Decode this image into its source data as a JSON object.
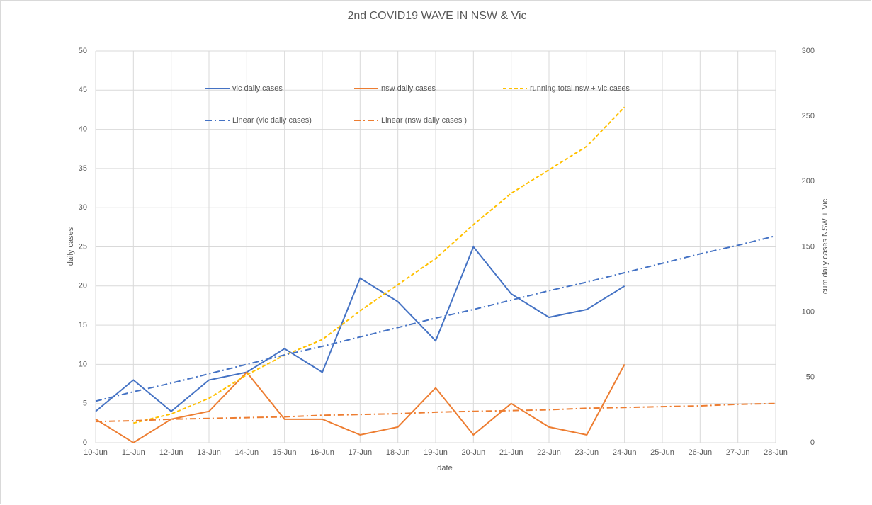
{
  "chart_data": {
    "type": "line",
    "title": "2nd COVID19 WAVE IN NSW & Vic",
    "x_label": "date",
    "y_label": "daily cases",
    "y2_label": "cum daily cases NSW + Vic",
    "categories": [
      "10-Jun",
      "11-Jun",
      "12-Jun",
      "13-Jun",
      "14-Jun",
      "15-Jun",
      "16-Jun",
      "17-Jun",
      "18-Jun",
      "19-Jun",
      "20-Jun",
      "21-Jun",
      "22-Jun",
      "23-Jun",
      "24-Jun",
      "25-Jun",
      "26-Jun",
      "27-Jun",
      "28-Jun"
    ],
    "ylim": [
      0,
      50
    ],
    "yticks": [
      0,
      5,
      10,
      15,
      20,
      25,
      30,
      35,
      40,
      45,
      50
    ],
    "y2lim": [
      0,
      300
    ],
    "y2ticks": [
      0,
      50,
      100,
      150,
      200,
      250,
      300
    ],
    "grid": true,
    "series": [
      {
        "name": "vic daily cases",
        "color": "#4472c4",
        "line_style": "solid",
        "values": [
          4,
          8,
          4,
          8,
          9,
          12,
          9,
          21,
          18,
          13,
          25,
          19,
          16,
          17,
          20,
          null,
          null,
          null,
          null
        ]
      },
      {
        "name": "nsw daily cases",
        "color": "#ed7d31",
        "line_style": "solid",
        "values": [
          3,
          0,
          3,
          4,
          9,
          3,
          3,
          1,
          2,
          7,
          1,
          5,
          2,
          1,
          10,
          null,
          null,
          null,
          null
        ]
      },
      {
        "name": "running total nsw + vic cases",
        "color": "#ffc000",
        "line_style": "dash",
        "axis": "y2",
        "values": [
          null,
          15,
          22,
          34,
          52,
          67,
          79,
          101,
          121,
          141,
          167,
          191,
          209,
          227,
          257,
          null,
          null,
          null,
          null
        ]
      },
      {
        "name": "Linear (vic daily cases)",
        "color": "#4472c4",
        "line_style": "dash-dot",
        "values": [
          5.3,
          6.5,
          7.6,
          8.8,
          10.0,
          11.2,
          12.3,
          13.5,
          14.7,
          15.9,
          17.0,
          18.2,
          19.4,
          20.5,
          21.7,
          22.9,
          24.1,
          25.2,
          26.4
        ]
      },
      {
        "name": "Linear (nsw daily cases )",
        "color": "#ed7d31",
        "line_style": "dash-dot",
        "values": [
          2.7,
          2.8,
          3.0,
          3.1,
          3.2,
          3.3,
          3.5,
          3.6,
          3.7,
          3.9,
          4.0,
          4.1,
          4.2,
          4.4,
          4.5,
          4.6,
          4.7,
          4.9,
          5.0
        ]
      }
    ]
  }
}
